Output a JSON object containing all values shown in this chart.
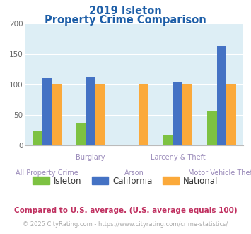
{
  "title_line1": "2019 Isleton",
  "title_line2": "Property Crime Comparison",
  "categories": [
    "All Property Crime",
    "Burglary",
    "Arson",
    "Larceny & Theft",
    "Motor Vehicle Theft"
  ],
  "isleton": [
    23,
    36,
    0,
    16,
    55
  ],
  "california": [
    110,
    113,
    0,
    104,
    163
  ],
  "national": [
    100,
    100,
    100,
    100,
    100
  ],
  "colors": {
    "isleton": "#7dc242",
    "california": "#4472c4",
    "national": "#fba93a",
    "background": "#ddeef5",
    "title": "#1e5fa8",
    "axis_label": "#9b8bba",
    "note_color": "#c03060",
    "footer_color": "#aaaaaa",
    "footer_link": "#4472c4",
    "grid": "#ffffff"
  },
  "ylim": [
    0,
    200
  ],
  "yticks": [
    0,
    50,
    100,
    150,
    200
  ],
  "bar_width": 0.22,
  "footnote": "Compared to U.S. average. (U.S. average equals 100)",
  "footer_text": "© 2025 CityRating.com - ",
  "footer_link_text": "https://www.cityrating.com/crime-statistics/",
  "label_top": [
    "Burglary",
    "Larceny & Theft"
  ],
  "label_bot": [
    "All Property Crime",
    "Arson",
    "Motor Vehicle Theft"
  ]
}
